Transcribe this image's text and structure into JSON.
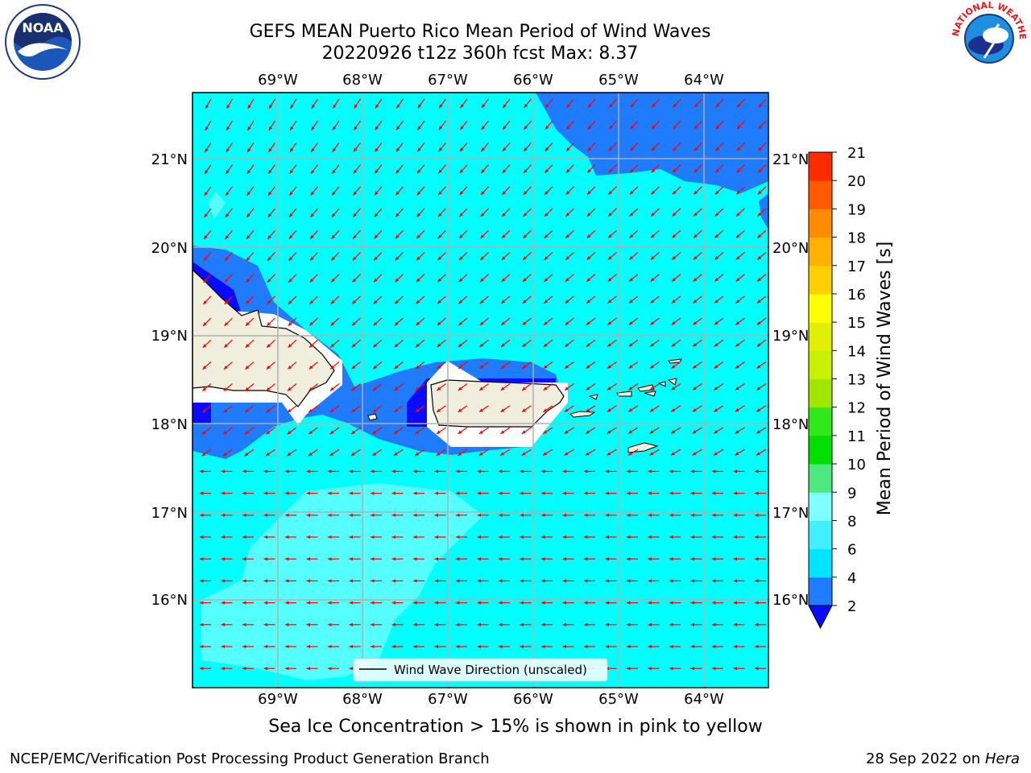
{
  "title_line1": "GEFS MEAN Puerto Rico Mean Period of Wind Waves",
  "title_line2": "20220926 t12z 360h fcst   Max: 8.37",
  "lon_labels": [
    "69°W",
    "68°W",
    "67°W",
    "66°W",
    "65°W",
    "64°W"
  ],
  "lat_labels": [
    "21°N",
    "20°N",
    "19°N",
    "18°N",
    "17°N",
    "16°N"
  ],
  "legend_label": "Wind Wave Direction (unscaled)",
  "ice_note": "Sea Ice Concentration > 15% is shown in pink to yellow",
  "footer_left": "NCEP/EMC/Verification Post Processing Product Generation Branch",
  "footer_date": "28 Sep 2022 on",
  "footer_machine": "Hera",
  "colorbar": {
    "label": "Mean Period of Wind Waves [s]",
    "ticks": [
      "2",
      "4",
      "6",
      "8",
      "9",
      "10",
      "11",
      "12",
      "13",
      "14",
      "15",
      "16",
      "17",
      "18",
      "19",
      "20",
      "21"
    ],
    "colors": [
      "#1f7bff",
      "#00e5ff",
      "#40f0ff",
      "#80ffff",
      "#4de87f",
      "#00e000",
      "#30e81a",
      "#a0e600",
      "#c8f000",
      "#e0f000",
      "#ffff00",
      "#ffd000",
      "#ffb000",
      "#ff8c00",
      "#ff5a00",
      "#ff2a00"
    ],
    "extend_color": "#0a0aff"
  },
  "colors": {
    "sea": "#00ffff",
    "period_2_4": "#1f7bff",
    "period_under_2": "#0a0aff",
    "period_6_8": "#55ffff",
    "land": "#f0eedc",
    "arrows": "#ff0000",
    "grid": "#b0b0b0"
  },
  "logos": {
    "left": "NOAA",
    "right": "NATIONAL WEATHER SERVICE"
  }
}
